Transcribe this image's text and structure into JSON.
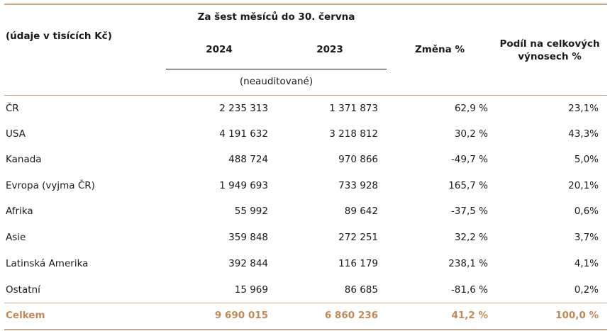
{
  "header": {
    "units": "(údaje v tisících Kč)",
    "period": "Za šest měsíců do 30. června",
    "year_2024": "2024",
    "year_2023": "2023",
    "change": "Změna %",
    "share_line1": "Podíl na celkových",
    "share_line2": "výnosech %",
    "unaudited": "(neauditované)"
  },
  "rows": [
    {
      "region": "ČR",
      "v2024": "2 235 313",
      "v2023": "1 371 873",
      "change": "62,9 %",
      "share": "23,1%"
    },
    {
      "region": "USA",
      "v2024": "4 191 632",
      "v2023": "3 218 812",
      "change": "30,2 %",
      "share": "43,3%"
    },
    {
      "region": "Kanada",
      "v2024": "488 724",
      "v2023": "970 866",
      "change": "-49,7 %",
      "share": "5,0%"
    },
    {
      "region": "Evropa (vyjma ČR)",
      "v2024": "1 949 693",
      "v2023": "733 928",
      "change": "165,7 %",
      "share": "20,1%"
    },
    {
      "region": "Afrika",
      "v2024": "55 992",
      "v2023": "89 642",
      "change": "-37,5 %",
      "share": "0,6%"
    },
    {
      "region": "Asie",
      "v2024": "359 848",
      "v2023": "272 251",
      "change": "32,2 %",
      "share": "3,7%"
    },
    {
      "region": "Latinská Amerika",
      "v2024": "392 844",
      "v2023": "116 179",
      "change": "238,1 %",
      "share": "4,1%"
    },
    {
      "region": "Ostatní",
      "v2024": "15 969",
      "v2023": "86 685",
      "change": "-81,6 %",
      "share": "0,2%"
    }
  ],
  "total": {
    "region": "Celkem",
    "v2024": "9 690 015",
    "v2023": "6 860 236",
    "change": "41,2 %",
    "share": "100,0 %"
  },
  "colors": {
    "accent": "#c0895a",
    "rule": "#c9a98c"
  }
}
